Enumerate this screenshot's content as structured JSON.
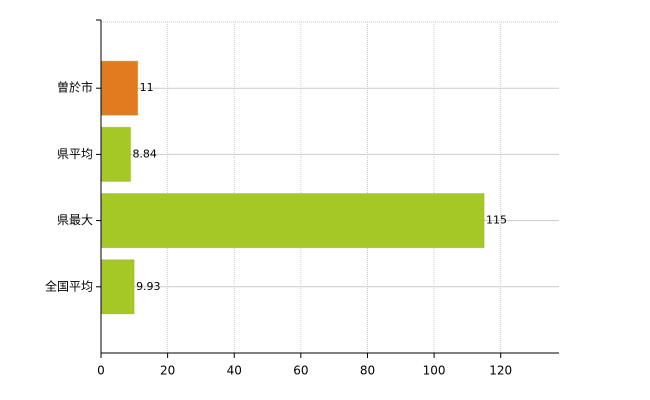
{
  "chart_data": {
    "type": "barh",
    "categories": [
      "曽於市",
      "県平均",
      "県最大",
      "全国平均"
    ],
    "values": [
      11,
      8.84,
      115,
      9.93
    ],
    "colors": [
      "#e07b20",
      "#a6c827",
      "#a6c827",
      "#a6c827"
    ],
    "xlim": [
      0,
      137.5
    ],
    "xticks": [
      0,
      20,
      40,
      60,
      80,
      100,
      120
    ],
    "grid": true
  }
}
